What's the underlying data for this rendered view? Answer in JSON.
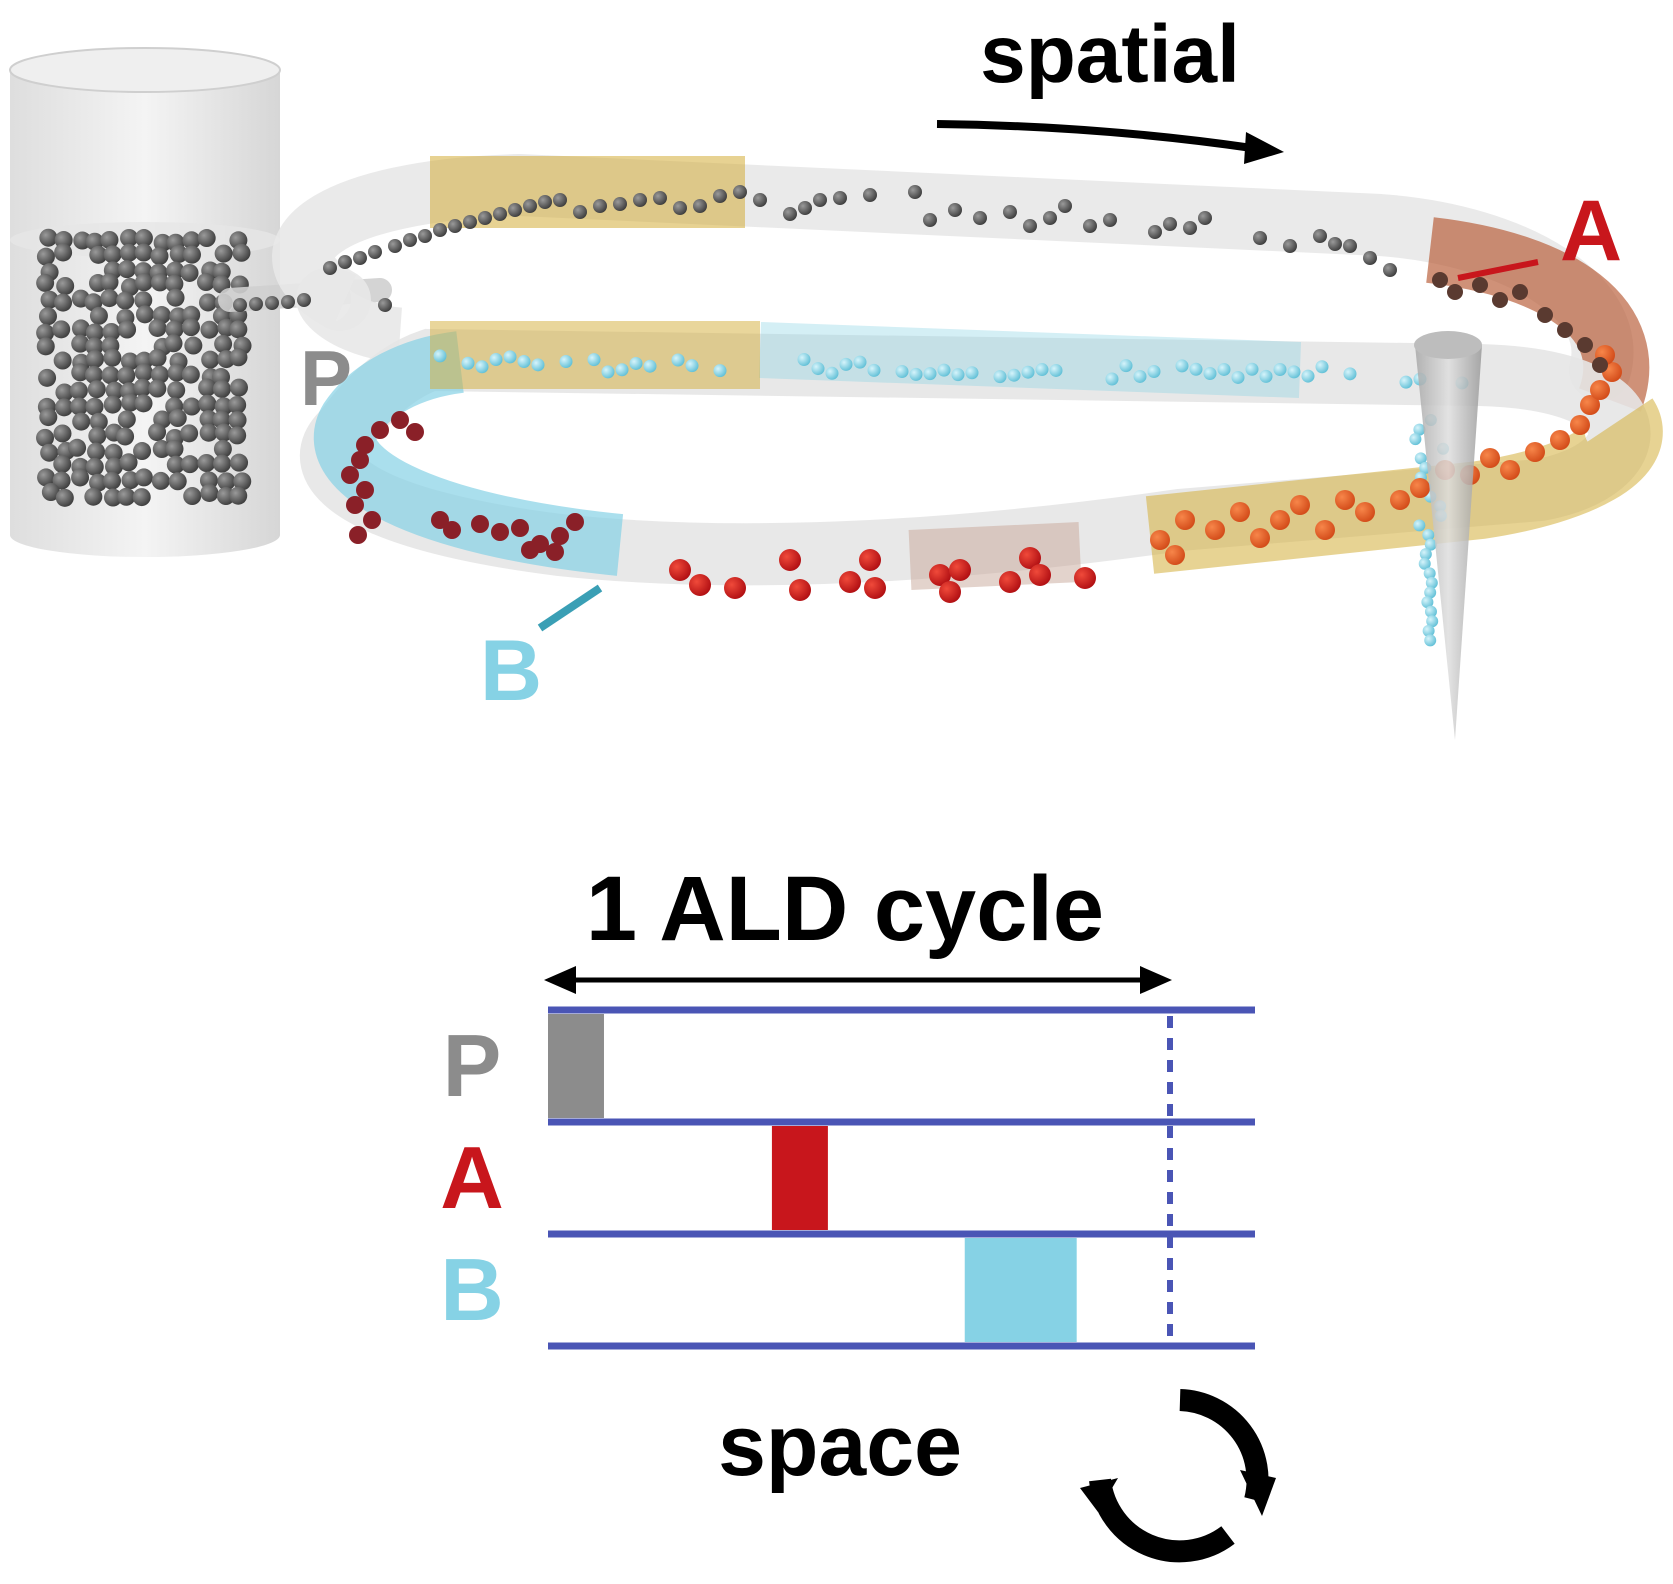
{
  "title": "spatial",
  "cycle_label": "1 ALD cycle",
  "axis_label": "space",
  "reactor_labels": {
    "p": "P",
    "a": "A",
    "b": "B"
  },
  "timeline": {
    "rows": [
      {
        "label": "P",
        "color": "#8c8c8c"
      },
      {
        "label": "A",
        "color": "#c8161c"
      },
      {
        "label": "B",
        "color": "#86d2e5"
      }
    ],
    "pulses": [
      {
        "row": "P",
        "start": 0.0,
        "end": 0.09
      },
      {
        "row": "A",
        "start": 0.36,
        "end": 0.45
      },
      {
        "row": "B",
        "start": 0.67,
        "end": 0.85
      }
    ]
  },
  "colors": {
    "precursor_gray": "#8c8c8c",
    "precursor_red": "#c8161c",
    "precursor_cyan": "#86d2e5",
    "line_blue": "#4a55b5",
    "zone_gold": "#d4ae3a"
  }
}
